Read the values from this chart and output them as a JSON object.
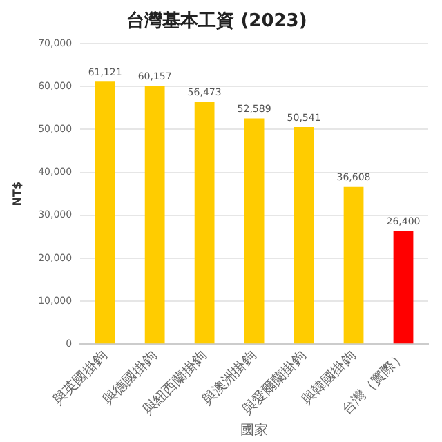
{
  "chart_data": {
    "type": "bar",
    "title": "台灣基本工資 (2023)",
    "xlabel": "國家",
    "ylabel": "NT$",
    "categories": [
      "與英國掛鉤",
      "與德國掛鉤",
      "與紐西蘭掛鉤",
      "與澳洲掛鉤",
      "與愛爾蘭掛鉤",
      "與韓國掛鉤",
      "台灣（實際）"
    ],
    "values": [
      61121,
      60157,
      56473,
      52589,
      50541,
      36608,
      26400
    ],
    "value_labels": [
      "61,121",
      "60,157",
      "56,473",
      "52,589",
      "50,541",
      "36,608",
      "26,400"
    ],
    "colors": [
      "#ffcc00",
      "#ffcc00",
      "#ffcc00",
      "#ffcc00",
      "#ffcc00",
      "#ffcc00",
      "#ff0000"
    ],
    "ylim": [
      0,
      70000
    ],
    "yticks": [
      0,
      {
        "value": 10000,
        "label": "10,000"
      },
      {
        "value": 20000,
        "label": "20,000"
      },
      {
        "value": 30000,
        "label": "30,000"
      },
      {
        "value": 40000,
        "label": "40,000"
      },
      {
        "value": 50000,
        "label": "50,000"
      },
      {
        "value": 60000,
        "label": "60,000"
      },
      {
        "value": 70000,
        "label": "70,000"
      }
    ],
    "grid": "y"
  }
}
